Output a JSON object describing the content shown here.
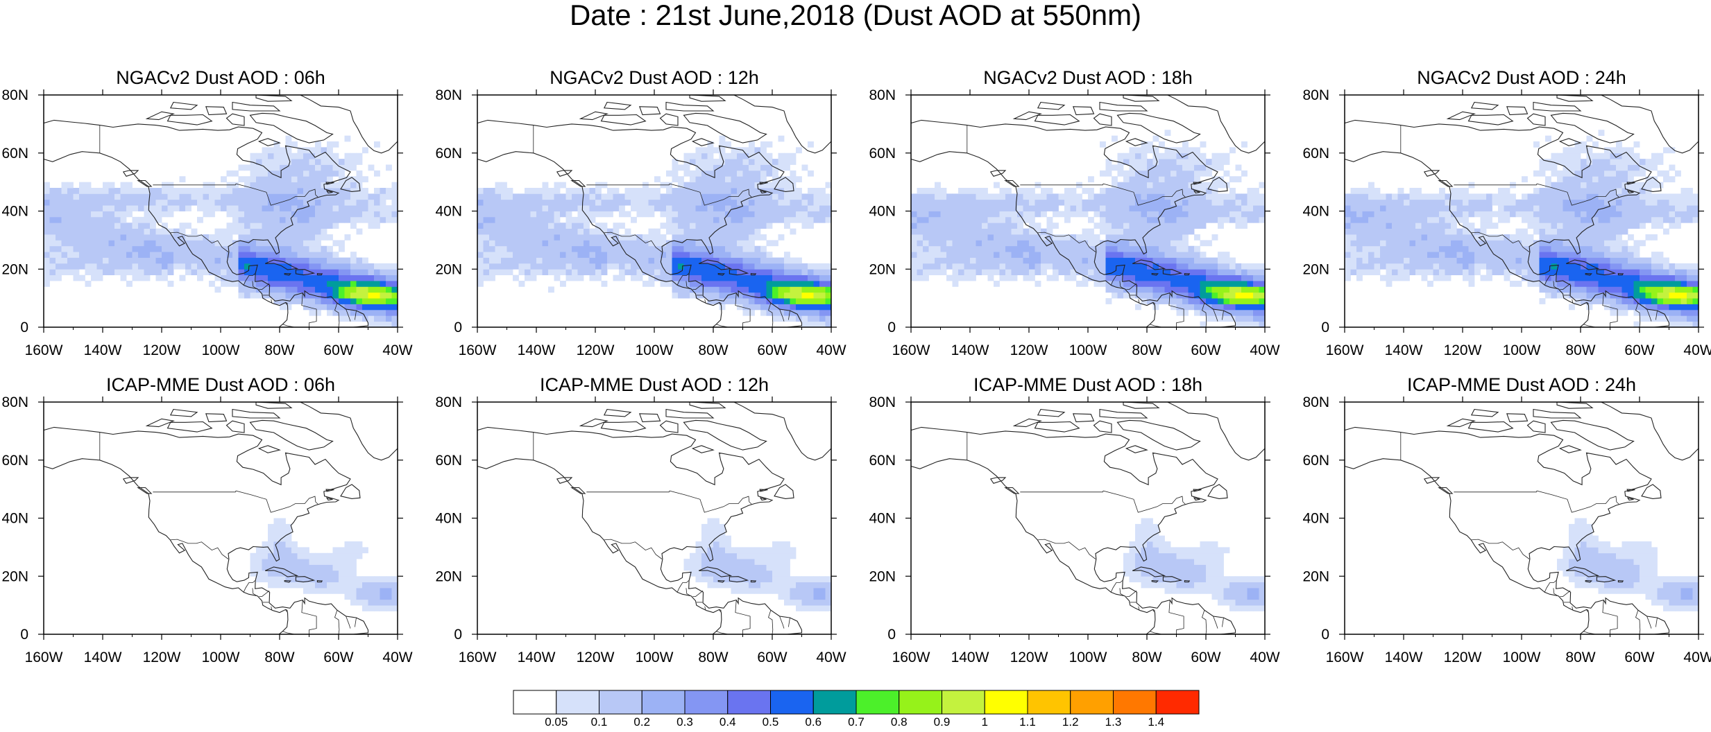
{
  "figure": {
    "title": "Date : 21st June,2018 (Dust AOD at 550nm)"
  },
  "axes": {
    "x_ticks": [
      "160W",
      "140W",
      "120W",
      "100W",
      "80W",
      "60W",
      "40W"
    ],
    "y_ticks": [
      "80N",
      "60N",
      "40N",
      "20N",
      "0"
    ]
  },
  "panels": [
    {
      "title": "NGACv2 Dust AOD : 06h",
      "model": "ngac",
      "hour": 6
    },
    {
      "title": "NGACv2 Dust AOD : 12h",
      "model": "ngac",
      "hour": 12
    },
    {
      "title": "NGACv2 Dust AOD : 18h",
      "model": "ngac",
      "hour": 18
    },
    {
      "title": "NGACv2 Dust AOD : 24h",
      "model": "ngac",
      "hour": 24
    },
    {
      "title": "ICAP-MME Dust AOD : 06h",
      "model": "icap",
      "hour": 6
    },
    {
      "title": "ICAP-MME Dust AOD : 12h",
      "model": "icap",
      "hour": 12
    },
    {
      "title": "ICAP-MME Dust AOD : 18h",
      "model": "icap",
      "hour": 18
    },
    {
      "title": "ICAP-MME Dust AOD : 24h",
      "model": "icap",
      "hour": 24
    }
  ],
  "colorbar": {
    "labels": [
      "0.05",
      "0.1",
      "0.2",
      "0.3",
      "0.4",
      "0.5",
      "0.6",
      "0.7",
      "0.8",
      "0.9",
      "1",
      "1.1",
      "1.2",
      "1.3",
      "1.4"
    ],
    "colors": [
      "#ffffff",
      "#d6e1fa",
      "#b8c8f6",
      "#9cb2f5",
      "#8496f3",
      "#6a74f0",
      "#1a64f0",
      "#009c9c",
      "#4cf02a",
      "#96f21a",
      "#c4f23e",
      "#ffff00",
      "#ffc400",
      "#ffa000",
      "#ff7800",
      "#ff2a00"
    ]
  }
}
